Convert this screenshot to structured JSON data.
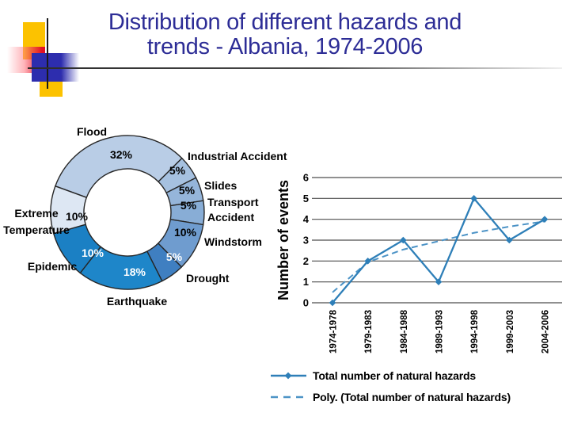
{
  "slide": {
    "title_line1": "Distribution of different hazards and",
    "title_line2": "trends - Albania, 1974-2006"
  },
  "colors": {
    "title": "#2d2d96",
    "accent_yellow": "#fcc200",
    "accent_red": "#e21226",
    "accent_blue": "#2d2dae",
    "line_series": "#2e7fb8",
    "trend_line": "#4c93c6",
    "gridline": "#4d4d4d",
    "donut_stroke": "#262626"
  },
  "chart_data": [
    {
      "type": "pie",
      "subtype": "donut",
      "start_angle_deg": -70,
      "segments": [
        {
          "label": "Flood",
          "pct": 32,
          "pct_label": "32%",
          "color": "#b9cde6",
          "pct_text_color": "#000000"
        },
        {
          "label": "Industrial Accident",
          "pct": 5,
          "pct_label": "5%",
          "color": "#a6c1e0",
          "pct_text_color": "#000000"
        },
        {
          "label": "Slides",
          "pct": 5,
          "pct_label": "5%",
          "color": "#95b5da",
          "pct_text_color": "#000000"
        },
        {
          "label": "Transport Accident",
          "label_lines": [
            "Transport",
            "Accident"
          ],
          "pct": 5,
          "pct_label": "5%",
          "color": "#88add6",
          "pct_text_color": "#000000"
        },
        {
          "label": "Windstorm",
          "pct": 10,
          "pct_label": "10%",
          "color": "#6f9ccf",
          "pct_text_color": "#000000"
        },
        {
          "label": "Drought",
          "pct": 5,
          "pct_label": "5%",
          "color": "#3f7fc1",
          "pct_text_color": "#ffffff"
        },
        {
          "label": "Earthquake",
          "pct": 18,
          "pct_label": "18%",
          "color": "#1e86c9",
          "pct_text_color": "#ffffff"
        },
        {
          "label": "Epidemic",
          "pct": 10,
          "pct_label": "10%",
          "color": "#1b80c4",
          "pct_text_color": "#ffffff"
        },
        {
          "label": "Extreme Temperature",
          "label_lines": [
            "Extreme",
            "Temperature"
          ],
          "pct": 10,
          "pct_label": "10%",
          "color": "#dde7f3",
          "pct_text_color": "#000000"
        }
      ]
    },
    {
      "type": "line",
      "ylabel": "Number of events",
      "ylim": [
        0,
        6
      ],
      "ytick_step": 1,
      "grid": true,
      "legend_position": "bottom",
      "categories": [
        "1974-1978",
        "1979-1983",
        "1984-1988",
        "1989-1993",
        "1994-1998",
        "1999-2003",
        "2004-2006"
      ],
      "series": [
        {
          "name": "Total number of natural hazards",
          "values": [
            0,
            2,
            3,
            1,
            5,
            3,
            4
          ],
          "style": "solid",
          "marker": "diamond"
        }
      ],
      "trendline": {
        "name": "Poly. (Total number of natural hazards)",
        "style": "dashed",
        "values": [
          0.5,
          1.95,
          2.55,
          2.95,
          3.35,
          3.65,
          3.9
        ]
      }
    }
  ],
  "legend": {
    "items": [
      {
        "label": "Total number of natural hazards",
        "swatch": "solid-diamond"
      },
      {
        "label": "Poly. (Total number of natural hazards)",
        "swatch": "dashed"
      }
    ]
  }
}
